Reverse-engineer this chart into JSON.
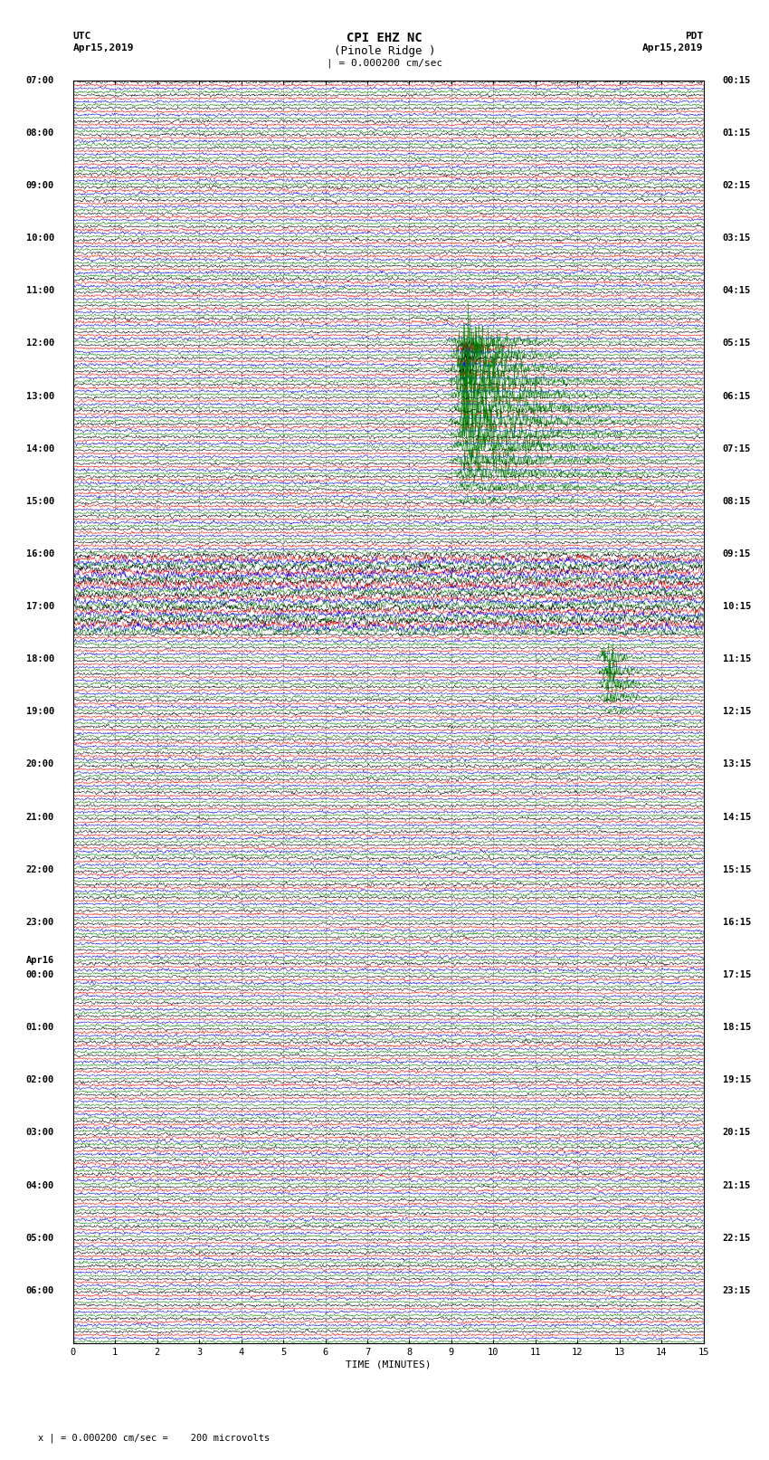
{
  "title_line1": "CPI EHZ NC",
  "title_line2": "(Pinole Ridge )",
  "title_line3": "| = 0.000200 cm/sec",
  "label_utc": "UTC",
  "label_date_left": "Apr15,2019",
  "label_pdt": "PDT",
  "label_date_right": "Apr15,2019",
  "label_apr16": "Apr16",
  "xlabel": "TIME (MINUTES)",
  "footer": "x | = 0.000200 cm/sec =    200 microvolts",
  "xlim": [
    0,
    15
  ],
  "xticks": [
    0,
    1,
    2,
    3,
    4,
    5,
    6,
    7,
    8,
    9,
    10,
    11,
    12,
    13,
    14,
    15
  ],
  "background_color": "#ffffff",
  "trace_colors": [
    "black",
    "red",
    "blue",
    "green"
  ],
  "n_groups": 96,
  "noise_amplitude": 0.03,
  "grid_color": "#888888",
  "title_fontsize": 10,
  "tick_fontsize": 7.5,
  "label_fontsize": 8,
  "left_labels": [
    [
      "07:00",
      0
    ],
    [
      "08:00",
      4
    ],
    [
      "09:00",
      8
    ],
    [
      "10:00",
      12
    ],
    [
      "11:00",
      16
    ],
    [
      "12:00",
      20
    ],
    [
      "13:00",
      24
    ],
    [
      "14:00",
      28
    ],
    [
      "15:00",
      32
    ],
    [
      "16:00",
      36
    ],
    [
      "17:00",
      40
    ],
    [
      "18:00",
      44
    ],
    [
      "19:00",
      48
    ],
    [
      "20:00",
      52
    ],
    [
      "21:00",
      56
    ],
    [
      "22:00",
      60
    ],
    [
      "23:00",
      64
    ],
    [
      "00:00",
      68
    ],
    [
      "01:00",
      72
    ],
    [
      "02:00",
      76
    ],
    [
      "03:00",
      80
    ],
    [
      "04:00",
      84
    ],
    [
      "05:00",
      88
    ],
    [
      "06:00",
      92
    ]
  ],
  "right_labels": [
    [
      "00:15",
      0
    ],
    [
      "01:15",
      4
    ],
    [
      "02:15",
      8
    ],
    [
      "03:15",
      12
    ],
    [
      "04:15",
      16
    ],
    [
      "05:15",
      20
    ],
    [
      "06:15",
      24
    ],
    [
      "07:15",
      28
    ],
    [
      "08:15",
      32
    ],
    [
      "09:15",
      36
    ],
    [
      "10:15",
      40
    ],
    [
      "11:15",
      44
    ],
    [
      "12:15",
      48
    ],
    [
      "13:15",
      52
    ],
    [
      "14:15",
      56
    ],
    [
      "15:15",
      60
    ],
    [
      "16:15",
      64
    ],
    [
      "17:15",
      68
    ],
    [
      "18:15",
      72
    ],
    [
      "19:15",
      76
    ],
    [
      "20:15",
      80
    ],
    [
      "21:15",
      84
    ],
    [
      "22:15",
      88
    ],
    [
      "23:15",
      92
    ]
  ],
  "big_quake_group": 20,
  "big_quake_time": 9.3,
  "big_quake_color_idx": 3,
  "big_quake_n_rows": 12,
  "big_quake_amplitude": 0.45,
  "small_quake_group": 44,
  "small_quake_time": 12.7,
  "small_quake_color_idx": 3,
  "small_quake_n_rows": 4,
  "small_quake_amplitude": 0.2
}
